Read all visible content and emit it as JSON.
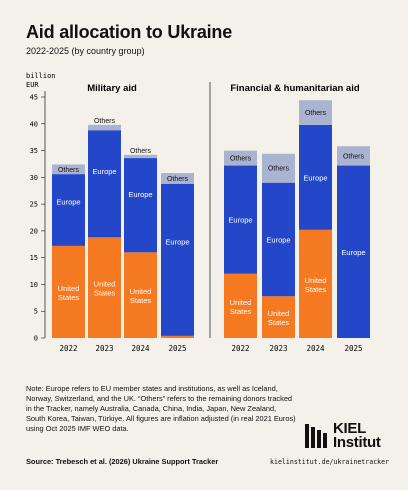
{
  "chart_data": {
    "type": "bar",
    "stacked": true,
    "title": "Aid allocation to Ukraine",
    "subtitle": "2022-2025 (by country group)",
    "yunit_lines": [
      "billion",
      "EUR"
    ],
    "ylim": [
      0,
      45
    ],
    "yticks": [
      0,
      5,
      10,
      15,
      20,
      25,
      30,
      35,
      40,
      45
    ],
    "grid": false,
    "colors": {
      "United States": "#f47920",
      "Europe": "#2347c8",
      "Others": "#aab4d0"
    },
    "panels": [
      {
        "title": "Military aid",
        "categories": [
          "2022",
          "2023",
          "2024",
          "2025"
        ],
        "series": [
          {
            "name": "United States",
            "values": [
              17.2,
              18.8,
              16.0,
              0.4
            ]
          },
          {
            "name": "Europe",
            "values": [
              13.4,
              20.0,
              17.6,
              28.4
            ]
          },
          {
            "name": "Others",
            "values": [
              1.8,
              1.0,
              0.6,
              2.0
            ]
          }
        ]
      },
      {
        "title": "Financial & humanitarian aid",
        "categories": [
          "2022",
          "2023",
          "2024",
          "2025"
        ],
        "series": [
          {
            "name": "United States",
            "values": [
              12.0,
              7.8,
              20.2,
              0.0
            ]
          },
          {
            "name": "Europe",
            "values": [
              20.2,
              21.2,
              19.6,
              32.2
            ]
          },
          {
            "name": "Others",
            "values": [
              2.8,
              5.4,
              4.6,
              3.6
            ]
          }
        ]
      }
    ],
    "segment_labels": {
      "United States": [
        "United",
        "States"
      ],
      "Europe": [
        "Europe"
      ],
      "Others": [
        "Others"
      ]
    }
  },
  "note": "Note: Europe refers to EU member states and institutions, as well as Iceland, Norway, Switzerland, and the UK. “Others” refers to the remaining donors tracked in the Tracker, namely Australia, Canada, China, India, Japan, New Zealand, South Korea, Taiwan, Türkiye. All figures are inflation adjusted (in real 2021 Euros) using Oct 2025 IMF WEO data.",
  "source": "Source: Trebesch et al. (2026) Ukraine Support Tracker",
  "logo": {
    "line1": "KIEL",
    "line2": "Institut",
    "url": "kielinstitut.de/ukrainetracker"
  }
}
